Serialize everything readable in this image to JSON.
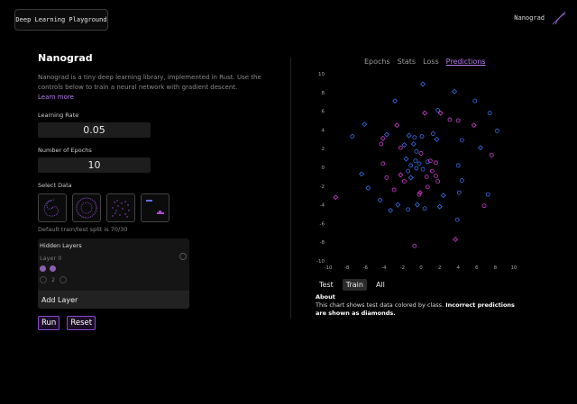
{
  "header": {
    "app_button": "Deep Learning Playground",
    "brand": "Nanograd"
  },
  "left": {
    "title": "Nanograd",
    "description": "Nanograd is a tiny deep learning library, implemented in Rust. Use the controls below to train a neural network with gradient descent.",
    "learn_more": "Learn more",
    "learning_rate_label": "Learning Rate",
    "learning_rate_value": "0.05",
    "epochs_label": "Number of Epochs",
    "epochs_value": "10",
    "select_data_label": "Select Data",
    "datasets": [
      "spiral",
      "circle",
      "gaussian",
      "xor"
    ],
    "split_text": "Default train/test split is 70/30",
    "hidden_layers_title": "Hidden Layers",
    "layer0_label": "Layer 0",
    "neuron_count": "2",
    "add_layer": "Add Layer",
    "run": "Run",
    "reset": "Reset"
  },
  "right": {
    "tabs": [
      "Epochs",
      "Stats",
      "Loss",
      "Predictions"
    ],
    "active_tab": "Predictions",
    "split_tabs": [
      "Test",
      "Train",
      "All"
    ],
    "active_split": "Train",
    "about_title": "About",
    "about_text": "This chart shows test data colored by class.",
    "about_bold": "Incorrect predictions are shown as diamonds."
  },
  "colors": {
    "accent": "#b77cf0",
    "class_a": "#3c6fe8",
    "class_b": "#d03fd0",
    "button_border": "#8b4ad0"
  },
  "chart_data": {
    "type": "scatter",
    "xlim": [
      -10,
      10
    ],
    "ylim": [
      -10,
      10
    ],
    "x_ticks": [
      -10,
      -8,
      -6,
      -4,
      -2,
      0,
      2,
      4,
      6,
      8,
      10
    ],
    "y_ticks": [
      10,
      8,
      6,
      4,
      2,
      0,
      -2,
      -4,
      -6,
      -8,
      -10
    ],
    "grid": false,
    "series": [
      {
        "color": "#3c6fe8",
        "points": [
          {
            "x": 0.2,
            "y": 8.9,
            "shape": "diamond"
          },
          {
            "x": 3.6,
            "y": 8.1,
            "shape": "diamond"
          },
          {
            "x": 5.8,
            "y": 7.1,
            "shape": "circle"
          },
          {
            "x": -2.8,
            "y": 7.1,
            "shape": "diamond"
          },
          {
            "x": 7.4,
            "y": 5.8,
            "shape": "circle"
          },
          {
            "x": 1.8,
            "y": 6.1,
            "shape": "circle"
          },
          {
            "x": -6.1,
            "y": 4.6,
            "shape": "diamond"
          },
          {
            "x": -7.4,
            "y": 3.3,
            "shape": "circle"
          },
          {
            "x": 8.2,
            "y": 3.9,
            "shape": "circle"
          },
          {
            "x": 4.4,
            "y": 2.9,
            "shape": "circle"
          },
          {
            "x": -3.7,
            "y": 3.5,
            "shape": "diamond"
          },
          {
            "x": 1.3,
            "y": 3.6,
            "shape": "circle"
          },
          {
            "x": -1.3,
            "y": 3.4,
            "shape": "diamond"
          },
          {
            "x": -0.7,
            "y": 3.2,
            "shape": "circle"
          },
          {
            "x": 0.1,
            "y": 3.3,
            "shape": "circle"
          },
          {
            "x": 1.7,
            "y": 3.0,
            "shape": "diamond"
          },
          {
            "x": -0.8,
            "y": 2.5,
            "shape": "diamond"
          },
          {
            "x": -1.8,
            "y": 2.4,
            "shape": "diamond"
          },
          {
            "x": 6.4,
            "y": 2.1,
            "shape": "diamond"
          },
          {
            "x": -0.5,
            "y": 1.7,
            "shape": "circle"
          },
          {
            "x": -1.6,
            "y": 0.9,
            "shape": "diamond"
          },
          {
            "x": -0.6,
            "y": 0.7,
            "shape": "circle"
          },
          {
            "x": -0.2,
            "y": 0.4,
            "shape": "circle"
          },
          {
            "x": 0.7,
            "y": 0.6,
            "shape": "circle"
          },
          {
            "x": -1.1,
            "y": 0.2,
            "shape": "circle"
          },
          {
            "x": -0.5,
            "y": -0.1,
            "shape": "circle"
          },
          {
            "x": 0.2,
            "y": -0.2,
            "shape": "circle"
          },
          {
            "x": -1.4,
            "y": -0.4,
            "shape": "circle"
          },
          {
            "x": 4.0,
            "y": 0.2,
            "shape": "circle"
          },
          {
            "x": -6.4,
            "y": -0.7,
            "shape": "diamond"
          },
          {
            "x": -1.1,
            "y": -1.1,
            "shape": "diamond"
          },
          {
            "x": 4.4,
            "y": -1.4,
            "shape": "circle"
          },
          {
            "x": -5.7,
            "y": -2.2,
            "shape": "diamond"
          },
          {
            "x": 4.1,
            "y": -2.7,
            "shape": "circle"
          },
          {
            "x": 2.4,
            "y": -3.0,
            "shape": "diamond"
          },
          {
            "x": -4.4,
            "y": -3.5,
            "shape": "diamond"
          },
          {
            "x": 2.0,
            "y": -4.2,
            "shape": "diamond"
          },
          {
            "x": -2.5,
            "y": -4.0,
            "shape": "diamond"
          },
          {
            "x": -0.4,
            "y": -4.0,
            "shape": "diamond"
          },
          {
            "x": -1.4,
            "y": -4.5,
            "shape": "circle"
          },
          {
            "x": 0.4,
            "y": -4.4,
            "shape": "circle"
          },
          {
            "x": 7.2,
            "y": -2.9,
            "shape": "circle"
          },
          {
            "x": -3.3,
            "y": -4.6,
            "shape": "diamond"
          },
          {
            "x": 3.9,
            "y": -5.6,
            "shape": "circle"
          }
        ]
      },
      {
        "color": "#d03fd0",
        "points": [
          {
            "x": 0.4,
            "y": 5.8,
            "shape": "diamond"
          },
          {
            "x": 2.1,
            "y": 5.8,
            "shape": "diamond"
          },
          {
            "x": 3.1,
            "y": 5.1,
            "shape": "circle"
          },
          {
            "x": 4.0,
            "y": 5.0,
            "shape": "circle"
          },
          {
            "x": -2.6,
            "y": 4.5,
            "shape": "diamond"
          },
          {
            "x": 5.7,
            "y": 4.5,
            "shape": "diamond"
          },
          {
            "x": -4.1,
            "y": 3.1,
            "shape": "diamond"
          },
          {
            "x": -4.3,
            "y": 2.5,
            "shape": "circle"
          },
          {
            "x": -2.2,
            "y": 2.1,
            "shape": "circle"
          },
          {
            "x": 0.0,
            "y": 1.5,
            "shape": "circle"
          },
          {
            "x": 7.6,
            "y": 1.3,
            "shape": "circle"
          },
          {
            "x": -4.1,
            "y": 0.4,
            "shape": "circle"
          },
          {
            "x": 1.0,
            "y": 0.7,
            "shape": "circle"
          },
          {
            "x": 1.6,
            "y": 0.5,
            "shape": "circle"
          },
          {
            "x": 1.2,
            "y": -0.4,
            "shape": "circle"
          },
          {
            "x": 1.6,
            "y": -0.9,
            "shape": "circle"
          },
          {
            "x": -2.2,
            "y": -0.8,
            "shape": "diamond"
          },
          {
            "x": 0.6,
            "y": -1.0,
            "shape": "circle"
          },
          {
            "x": -3.7,
            "y": -1.1,
            "shape": "circle"
          },
          {
            "x": 1.8,
            "y": -1.5,
            "shape": "circle"
          },
          {
            "x": -1.8,
            "y": -1.5,
            "shape": "circle"
          },
          {
            "x": 0.7,
            "y": -2.1,
            "shape": "circle"
          },
          {
            "x": -2.9,
            "y": -2.4,
            "shape": "circle"
          },
          {
            "x": -0.1,
            "y": -2.7,
            "shape": "diamond"
          },
          {
            "x": -0.2,
            "y": -2.9,
            "shape": "circle"
          },
          {
            "x": -9.2,
            "y": -3.2,
            "shape": "diamond"
          },
          {
            "x": 6.8,
            "y": -4.1,
            "shape": "circle"
          },
          {
            "x": 3.7,
            "y": -7.7,
            "shape": "diamond"
          },
          {
            "x": -0.7,
            "y": -8.4,
            "shape": "circle"
          }
        ]
      }
    ]
  }
}
